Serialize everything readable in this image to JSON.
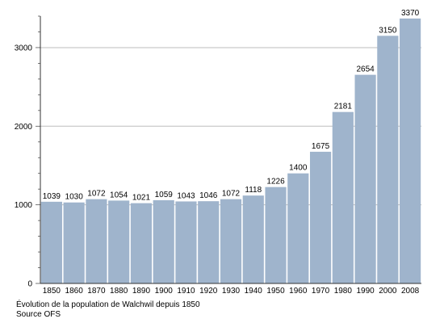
{
  "chart_data": {
    "type": "bar",
    "categories": [
      "1850",
      "1860",
      "1870",
      "1880",
      "1890",
      "1900",
      "1910",
      "1920",
      "1930",
      "1940",
      "1950",
      "1960",
      "1970",
      "1980",
      "1990",
      "2000",
      "2008"
    ],
    "values": [
      1039,
      1030,
      1072,
      1054,
      1021,
      1059,
      1043,
      1046,
      1072,
      1118,
      1226,
      1400,
      1675,
      2181,
      2654,
      3150,
      3370
    ],
    "title": "",
    "xlabel": "",
    "ylabel": "",
    "ylim": [
      0,
      3400
    ],
    "yticks": [
      0,
      1000,
      2000,
      3000
    ],
    "grid": true,
    "data_labels": true,
    "colors": {
      "bar": "#9fb4cc",
      "grid": "#bdbdbd"
    }
  },
  "caption": {
    "line1": "Évolution de la population de Walchwil depuis 1850",
    "line2": "Source OFS"
  }
}
